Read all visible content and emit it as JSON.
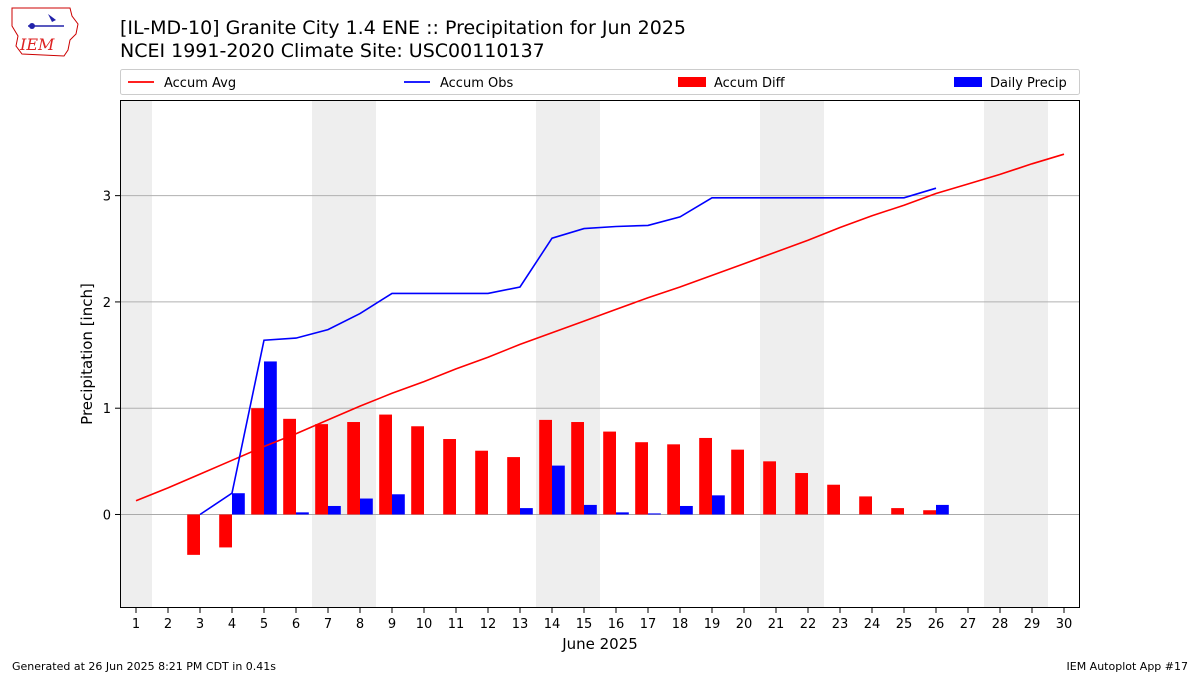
{
  "logo": {
    "text": "IEM"
  },
  "header": {
    "title_line1": "[IL-MD-10] Granite City 1.4 ENE :: Precipitation for Jun 2025",
    "title_line2": "NCEI 1991-2020 Climate Site: USC00110137"
  },
  "legend": {
    "items": [
      {
        "label": "Accum Avg",
        "kind": "line",
        "color": "#ff0000"
      },
      {
        "label": "Accum Obs",
        "kind": "line",
        "color": "#0000ff"
      },
      {
        "label": "Accum Diff",
        "kind": "bar",
        "color": "#ff0000"
      },
      {
        "label": "Daily Precip",
        "kind": "bar",
        "color": "#0000ff"
      }
    ]
  },
  "footer": {
    "left": "Generated at 26 Jun 2025 8:21 PM CDT in 0.41s",
    "right": "IEM Autoplot App #17"
  },
  "chart_data": {
    "type": "bar",
    "xlabel": "June 2025",
    "ylabel": "Precipitation [inch]",
    "x": [
      1,
      2,
      3,
      4,
      5,
      6,
      7,
      8,
      9,
      10,
      11,
      12,
      13,
      14,
      15,
      16,
      17,
      18,
      19,
      20,
      21,
      22,
      23,
      24,
      25,
      26,
      27,
      28,
      29,
      30
    ],
    "xlim": [
      0.5,
      30.5
    ],
    "ylim": [
      -0.88,
      3.9
    ],
    "yticks": [
      0,
      1,
      2,
      3
    ],
    "grid": "y",
    "weekend_bands": [
      [
        0.5,
        1.5
      ],
      [
        6.5,
        8.5
      ],
      [
        13.5,
        15.5
      ],
      [
        20.5,
        22.5
      ],
      [
        27.5,
        29.5
      ]
    ],
    "colors": {
      "avg": "#ff0000",
      "obs": "#0000ff",
      "diff": "#ff0000",
      "daily": "#0000ff",
      "band": "#eeeeee"
    },
    "series": [
      {
        "name": "Accum Avg",
        "kind": "line",
        "values": [
          0.13,
          0.25,
          0.38,
          0.51,
          0.64,
          0.76,
          0.89,
          1.02,
          1.14,
          1.25,
          1.37,
          1.48,
          1.6,
          1.71,
          1.82,
          1.93,
          2.04,
          2.14,
          2.25,
          2.36,
          2.47,
          2.58,
          2.7,
          2.81,
          2.91,
          3.02,
          3.11,
          3.2,
          3.3,
          3.39
        ]
      },
      {
        "name": "Accum Obs",
        "kind": "line",
        "values": [
          null,
          null,
          0.0,
          0.2,
          1.64,
          1.66,
          1.74,
          1.89,
          2.08,
          2.08,
          2.08,
          2.08,
          2.14,
          2.6,
          2.69,
          2.71,
          2.72,
          2.8,
          2.98,
          2.98,
          2.98,
          2.98,
          2.98,
          2.98,
          2.98,
          3.07,
          null,
          null,
          null,
          null
        ]
      },
      {
        "name": "Accum Diff",
        "kind": "bar",
        "values": [
          null,
          null,
          -0.38,
          -0.31,
          1.0,
          0.9,
          0.85,
          0.87,
          0.94,
          0.83,
          0.71,
          0.6,
          0.54,
          0.89,
          0.87,
          0.78,
          0.68,
          0.66,
          0.72,
          0.61,
          0.5,
          0.39,
          0.28,
          0.17,
          0.06,
          0.04,
          null,
          null,
          null,
          null
        ]
      },
      {
        "name": "Daily Precip",
        "kind": "bar",
        "values": [
          null,
          null,
          0.0,
          0.2,
          1.44,
          0.02,
          0.08,
          0.15,
          0.19,
          0.0,
          0.0,
          0.0,
          0.06,
          0.46,
          0.09,
          0.02,
          0.01,
          0.08,
          0.18,
          0.0,
          0.0,
          0.0,
          0.0,
          0.0,
          0.0,
          0.09,
          null,
          null,
          null,
          null
        ]
      }
    ]
  }
}
